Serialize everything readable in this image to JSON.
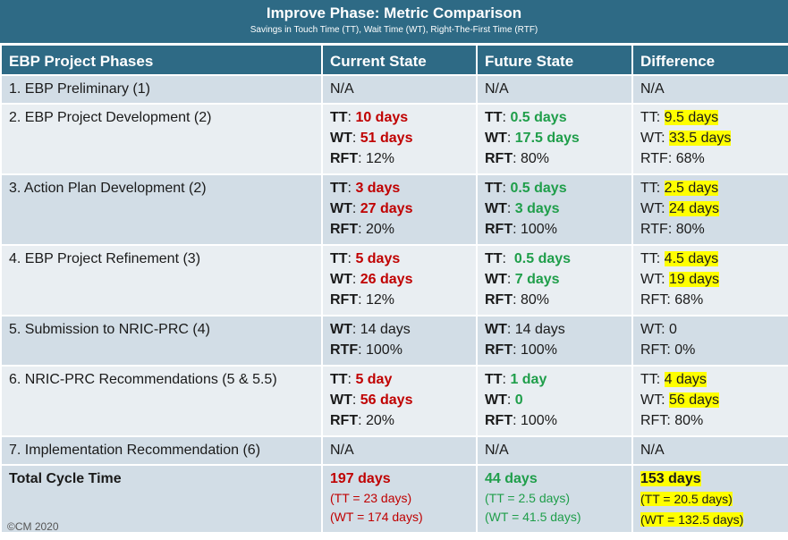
{
  "title": "Improve Phase: Metric Comparison",
  "subtitle": "Savings in Touch Time (TT), Wait Time (WT), Right-The-First Time (RTF)",
  "headers": [
    "EBP Project Phases",
    "Current State",
    "Future State",
    "Difference"
  ],
  "rows": [
    {
      "phase": "1. EBP Preliminary (1)",
      "current": "N/A",
      "future": "N/A",
      "difference": "N/A"
    },
    {
      "phase": "2. EBP Project Development (2)",
      "current": {
        "tt_label": "TT",
        "tt": "10 days",
        "wt_label": "WT",
        "wt": "51 days",
        "rft_label": "RFT",
        "rft": "12%"
      },
      "future": {
        "tt_label": "TT",
        "tt": "0.5 days",
        "wt_label": "WT",
        "wt": "17.5 days",
        "rft_label": "RFT",
        "rft": "80%"
      },
      "difference": {
        "tt_label": "TT:",
        "tt": "9.5 days",
        "wt_label": "WT:",
        "wt": "33.5 days",
        "rft": "RTF: 68%"
      }
    },
    {
      "phase": "3. Action Plan Development (2)",
      "current": {
        "tt_label": "TT",
        "tt": "3 days",
        "wt_label": "WT",
        "wt": "27 days",
        "rft_label": "RFT",
        "rft": "20%"
      },
      "future": {
        "tt_label": "TT",
        "tt": "0.5 days",
        "wt_label": "WT",
        "wt": "3 days",
        "rft_label": "RFT",
        "rft": "100%"
      },
      "difference": {
        "tt_label": "TT:",
        "tt": "2.5 days",
        "wt_label": "WT:",
        "wt": "24 days",
        "rft": "RTF: 80%"
      }
    },
    {
      "phase": "4. EBP Project Refinement (3)",
      "current": {
        "tt_label": "TT",
        "tt": "5 days",
        "wt_label": "WT",
        "wt": "26 days",
        "rft_label": "RFT",
        "rft": "12%"
      },
      "future": {
        "tt_label": "TT",
        "tt": "0.5 days",
        "wt_label": "WT",
        "wt": "7 days",
        "rft_label": "RFT",
        "rft": "80%"
      },
      "difference": {
        "tt_label": "TT:",
        "tt": "4.5 days",
        "wt_label": "WT:",
        "wt": "19 days",
        "rft": "RFT: 68%"
      }
    },
    {
      "phase": "5. Submission to NRIC-PRC (4)",
      "current": {
        "wt_label": "WT",
        "wt": "14 days",
        "rft_label": "RTF",
        "rft": "100%"
      },
      "future": {
        "wt_label": "WT",
        "wt": "14 days",
        "rft_label": "RFT",
        "rft": "100%"
      },
      "difference": {
        "wt": "WT: 0",
        "rft": "RFT: 0%"
      }
    },
    {
      "phase": "6. NRIC-PRC Recommendations (5 & 5.5)",
      "current": {
        "tt_label": "TT",
        "tt": "5 day",
        "wt_label": "WT",
        "wt": "56 days",
        "rft_label": "RFT",
        "rft": "20%"
      },
      "future": {
        "tt_label": "TT",
        "tt": "1 day",
        "wt_label": "WT",
        "wt": "0",
        "rft_label": "RFT",
        "rft": "100%"
      },
      "difference": {
        "tt_label": "TT:",
        "tt": "4 days",
        "wt_label": "WT:",
        "wt": "56 days",
        "rft": "RFT: 80%"
      }
    },
    {
      "phase": "7. Implementation Recommendation (6)",
      "current": "N/A",
      "future": "N/A",
      "difference": "N/A"
    }
  ],
  "total": {
    "label": "Total Cycle Time",
    "current": {
      "main": "197 days",
      "tt": "(TT = 23 days)",
      "wt": "(WT = 174 days)"
    },
    "future": {
      "main": "44 days",
      "tt": "(TT = 2.5 days)",
      "wt": "(WT = 41.5 days)"
    },
    "difference": {
      "main": "153 days",
      "tt": "(TT = 20.5 days)",
      "wt": "(WT = 132.5 days)"
    }
  },
  "copyright": "©CM 2020",
  "colors": {
    "header_bg": "#2e6a85",
    "row_dark": "#d2dde6",
    "row_light": "#e9eef2",
    "current_red": "#c00000",
    "future_green": "#1f9e4a",
    "highlight": "#ffff00"
  }
}
